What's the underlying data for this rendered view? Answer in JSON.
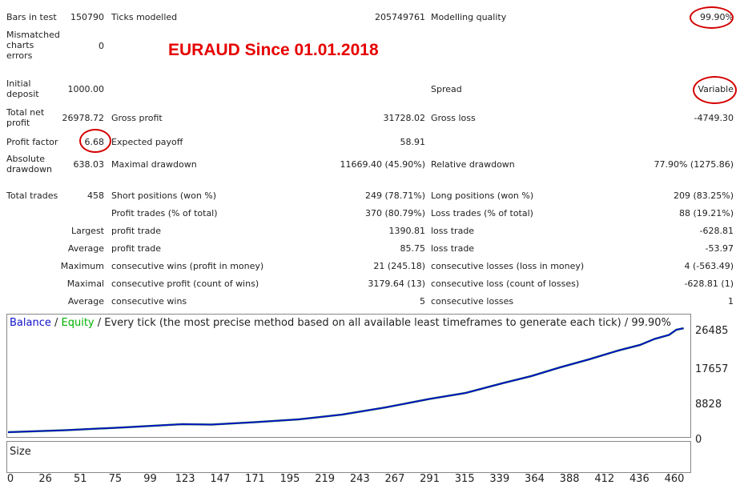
{
  "report": {
    "bars_in_test_label": "Bars in test",
    "bars_in_test_value": "150790",
    "ticks_modelled_label": "Ticks modelled",
    "ticks_modelled_value": "205749761",
    "modelling_quality_label": "Modelling quality",
    "modelling_quality_value": "99.90%",
    "mismatched_label": "Mismatched charts errors",
    "mismatched_value": "0",
    "initial_deposit_label": "Initial deposit",
    "initial_deposit_value": "1000.00",
    "spread_label": "Spread",
    "spread_value": "Variable",
    "total_net_profit_label": "Total net profit",
    "total_net_profit_value": "26978.72",
    "gross_profit_label": "Gross profit",
    "gross_profit_value": "31728.02",
    "gross_loss_label": "Gross loss",
    "gross_loss_value": "-4749.30",
    "profit_factor_label": "Profit factor",
    "profit_factor_value": "6.68",
    "expected_payoff_label": "Expected payoff",
    "expected_payoff_value": "58.91",
    "absolute_drawdown_label": "Absolute drawdown",
    "absolute_drawdown_value": "638.03",
    "maximal_drawdown_label": "Maximal drawdown",
    "maximal_drawdown_value": "11669.40 (45.90%)",
    "relative_drawdown_label": "Relative drawdown",
    "relative_drawdown_value": "77.90% (1275.86)",
    "total_trades_label": "Total trades",
    "total_trades_value": "458",
    "short_positions_label": "Short positions (won %)",
    "short_positions_value": "249 (78.71%)",
    "long_positions_label": "Long positions (won %)",
    "long_positions_value": "209 (83.25%)",
    "profit_trades_label": "Profit trades (% of total)",
    "profit_trades_value": "370 (80.79%)",
    "loss_trades_label": "Loss trades (% of total)",
    "loss_trades_value": "88 (19.21%)",
    "largest_label": "Largest",
    "largest_profit_label": "profit trade",
    "largest_profit_value": "1390.81",
    "largest_loss_label": "loss trade",
    "largest_loss_value": "-628.81",
    "average_label": "Average",
    "average_profit_label": "profit trade",
    "average_profit_value": "85.75",
    "average_loss_label": "loss trade",
    "average_loss_value": "-53.97",
    "maximum_label": "Maximum",
    "max_cons_wins_label": "consecutive wins (profit in money)",
    "max_cons_wins_value": "21 (245.18)",
    "max_cons_losses_label": "consecutive losses (loss in money)",
    "max_cons_losses_value": "4 (-563.49)",
    "maximal_label": "Maximal",
    "maximal_cons_profit_label": "consecutive profit (count of wins)",
    "maximal_cons_profit_value": "3179.64 (13)",
    "maximal_cons_loss_label": "consecutive loss (count of losses)",
    "maximal_cons_loss_value": "-628.81 (1)",
    "average2_label": "Average",
    "avg_cons_wins_label": "consecutive wins",
    "avg_cons_wins_value": "5",
    "avg_cons_losses_label": "consecutive losses",
    "avg_cons_losses_value": "1"
  },
  "banner": "EURAUD Since 01.01.2018",
  "chart_caption": {
    "balance": "Balance",
    "sep1": " / ",
    "equity": "Equity",
    "rest": " / Every tick (the most precise method based on all available least timeframes to generate each tick) / 99.90%"
  },
  "colors": {
    "balance": "#1010c8",
    "equity": "#00b000",
    "size_bars": "#00cc00",
    "highlight": "#d40000",
    "banner": "#e60000"
  },
  "size_label": "Size",
  "chart_data": {
    "type": "line",
    "x_ticks": [
      "0",
      "26",
      "51",
      "75",
      "99",
      "123",
      "147",
      "171",
      "195",
      "219",
      "243",
      "267",
      "291",
      "315",
      "339",
      "364",
      "388",
      "412",
      "436",
      "460"
    ],
    "y_ticks": [
      "26485",
      "17657",
      "8828",
      "0"
    ],
    "ylim": [
      0,
      28000
    ],
    "xlim": [
      0,
      468
    ],
    "series": [
      {
        "name": "Balance",
        "x": [
          0,
          40,
          80,
          120,
          140,
          170,
          200,
          230,
          260,
          290,
          315,
          340,
          360,
          380,
          400,
          420,
          435,
          445,
          455,
          460,
          465
        ],
        "values": [
          1000,
          1500,
          2200,
          3000,
          2900,
          3500,
          4200,
          5400,
          7200,
          9300,
          10800,
          13200,
          15000,
          17200,
          19200,
          21400,
          22800,
          24300,
          25300,
          26600,
          26980
        ]
      },
      {
        "name": "Equity",
        "x": [
          0,
          40,
          80,
          120,
          140,
          170,
          200,
          230,
          260,
          290,
          315,
          340,
          360,
          380,
          400,
          420,
          435,
          445,
          455,
          460,
          465
        ],
        "values": [
          1000,
          1500,
          2200,
          3000,
          2900,
          3500,
          4200,
          5400,
          7200,
          9300,
          10800,
          13200,
          15000,
          17200,
          19200,
          21400,
          22800,
          24300,
          25300,
          26600,
          26980
        ]
      }
    ],
    "size_series_description": "Size"
  }
}
